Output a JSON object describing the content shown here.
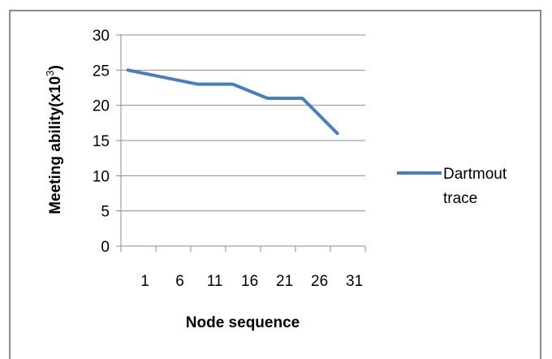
{
  "chart_data": {
    "type": "line",
    "title": "",
    "xlabel": "Node sequence",
    "ylabel": "Meeting ability(x10",
    "ylabel_superscript": "3",
    "ylabel_suffix": ")",
    "x_ticks": [
      "1",
      "6",
      "11",
      "16",
      "21",
      "26",
      "31"
    ],
    "y_ticks": [
      "0",
      "5",
      "10",
      "15",
      "20",
      "25",
      "30"
    ],
    "ylim": [
      0,
      30
    ],
    "xlim": [
      0,
      35
    ],
    "grid": "horizontal",
    "legend_position": "right",
    "series": [
      {
        "name": "Dartmout trace",
        "color": "#4a7ebb",
        "x": [
          1,
          11,
          16,
          21,
          26,
          31
        ],
        "values": [
          25,
          23,
          23,
          21,
          21,
          16
        ]
      }
    ]
  },
  "legend": {
    "line1": "Dartmout",
    "line2": "trace"
  }
}
